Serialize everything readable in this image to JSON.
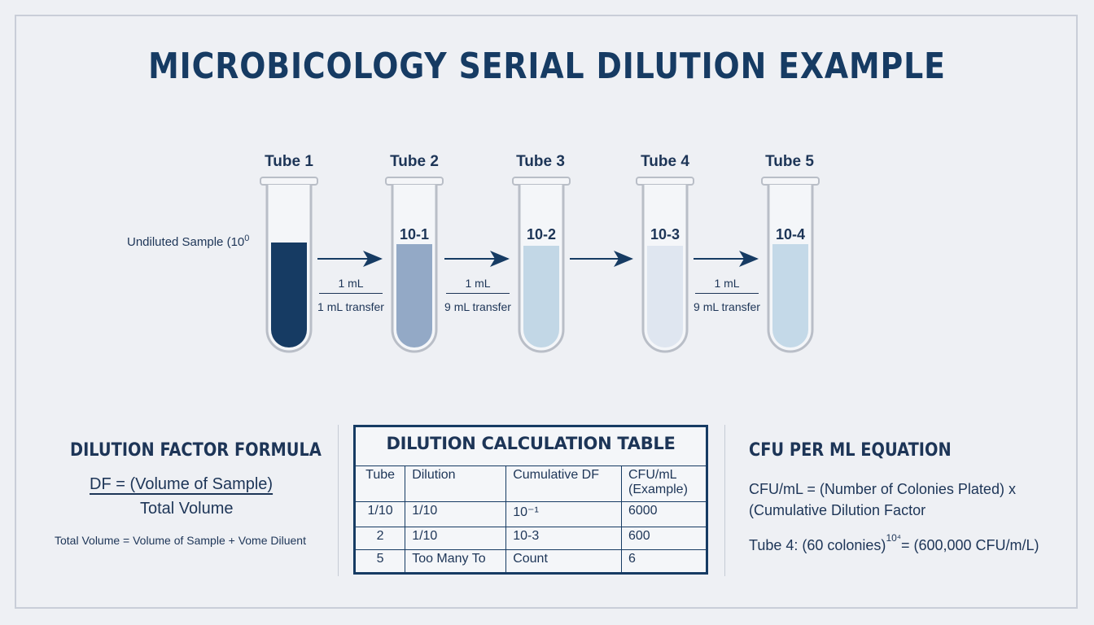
{
  "title": "MICROBICOLOGY SERIAL DILUTION EXAMPLE",
  "tubes": [
    {
      "label": "Tube 1",
      "conc": "",
      "fill": "#163b63"
    },
    {
      "label": "Tube 2",
      "conc": "10-1",
      "fill": "#93a9c6"
    },
    {
      "label": "Tube 3",
      "conc": "10-2",
      "fill": "#c2d7e6"
    },
    {
      "label": "Tube 4",
      "conc": "10-3",
      "fill": "#dfe6f0"
    },
    {
      "label": "Tube 5",
      "conc": "10-4",
      "fill": "#c4d9e8"
    }
  ],
  "undiluted_label": "Undiluted Sample (10",
  "undiluted_sup": "0",
  "transfers": [
    {
      "top": "1 mL",
      "bottom": "1 mL transfer"
    },
    {
      "top": "1 mL",
      "bottom": "9 mL transfer"
    },
    {
      "top": "",
      "bottom": ""
    },
    {
      "top": "1 mL",
      "bottom": "9 mL transfer"
    }
  ],
  "df_section": {
    "title": "DILUTION FACTOR FORMULA",
    "numerator": "DF = (Volume of Sample)",
    "denominator": "Total Volume",
    "note": "Total Volume = Volume of Sample + Vome Diluent"
  },
  "table": {
    "title": "DILUTION CALCULATION TABLE",
    "headers": [
      "Tube",
      "Dilution",
      "Cumulative DF",
      "CFU/mL",
      "(Example)"
    ],
    "rows": [
      [
        "1/10",
        "1/10",
        "10⁻¹",
        "6000"
      ],
      [
        "2",
        "1/10",
        "10-3",
        "600"
      ],
      [
        "5",
        "Too Many To",
        "Count",
        "6"
      ]
    ]
  },
  "cfu_section": {
    "title": "CFU PER ML EQUATION",
    "line1": "CFU/mL = (Number of Colonies Plated) x",
    "line2": "(Cumulative Dilution Factor",
    "example_pre": "Tube 4: (60 colonies)",
    "example_sup": "10⁴",
    "example_post": "= (600,000 CFU/m/L)"
  },
  "colors": {
    "navy": "#163b63",
    "tube_glass": "#b9bec7",
    "background": "#eef0f4"
  }
}
